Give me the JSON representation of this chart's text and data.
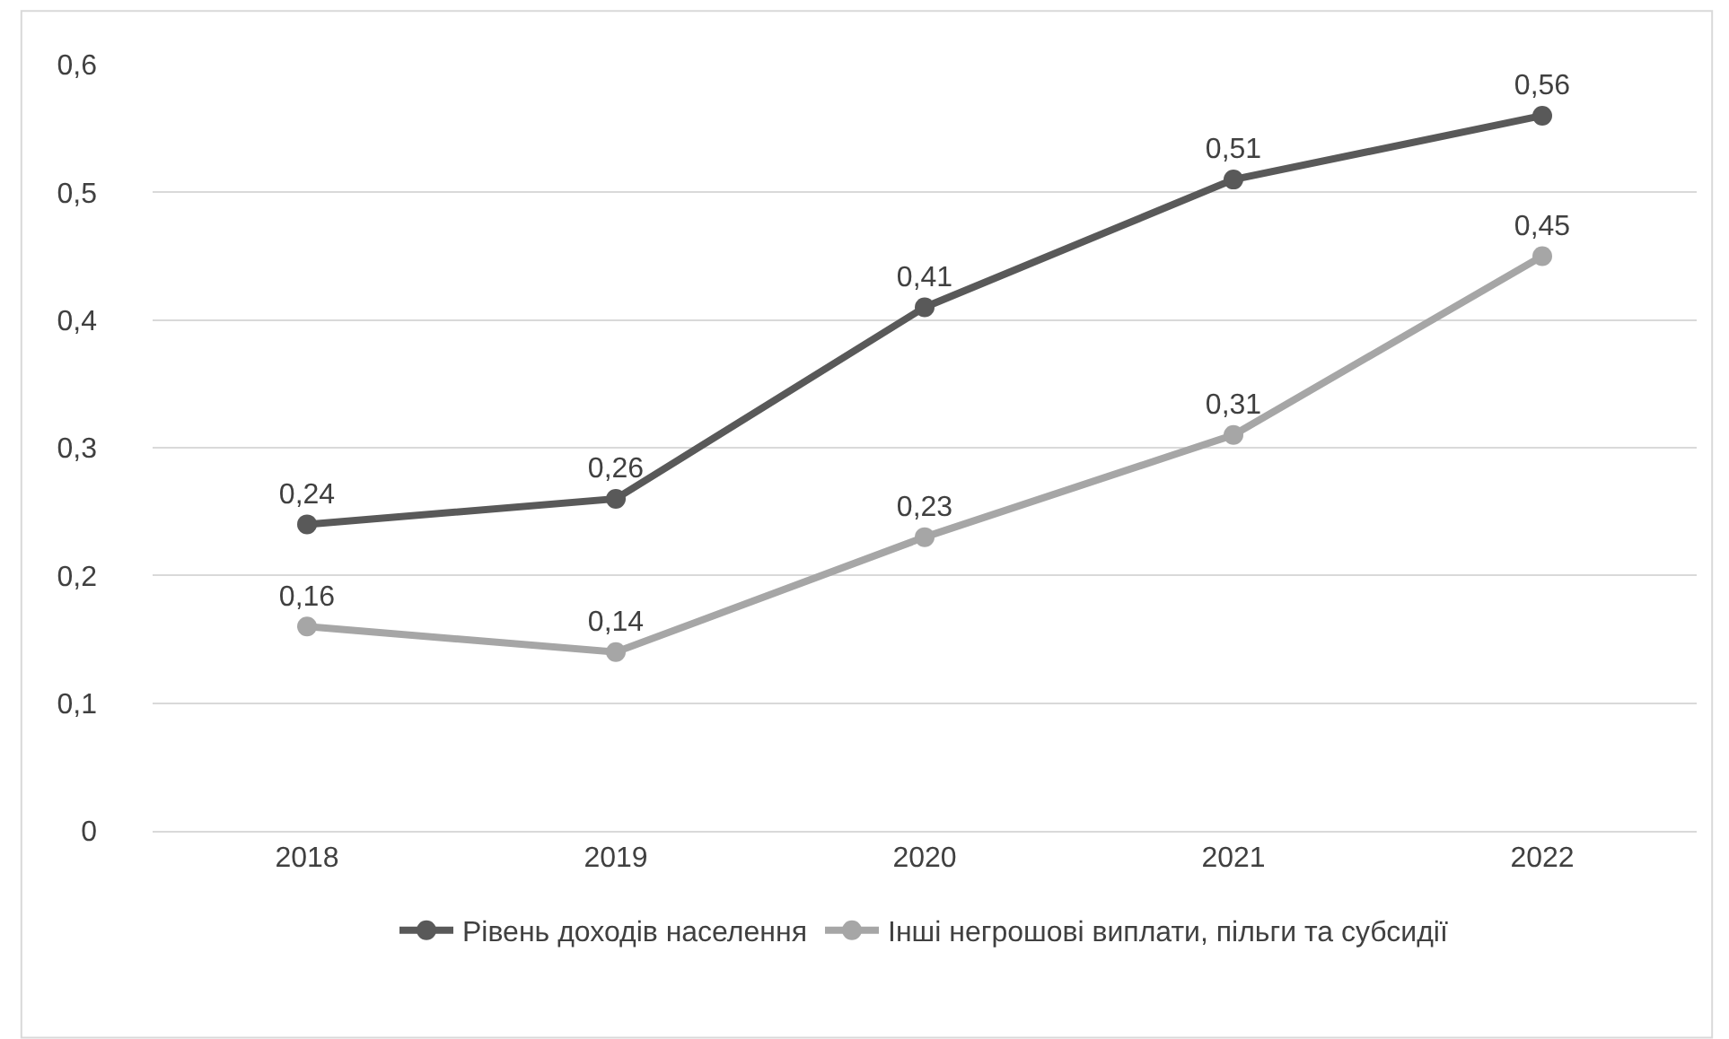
{
  "chart_data": {
    "type": "line",
    "categories": [
      "2018",
      "2019",
      "2020",
      "2021",
      "2022"
    ],
    "series": [
      {
        "name": "Рівень доходів населення",
        "color": "#595959",
        "values": [
          0.24,
          0.26,
          0.41,
          0.51,
          0.56
        ],
        "value_labels": [
          "0,24",
          "0,26",
          "0,41",
          "0,51",
          "0,56"
        ]
      },
      {
        "name": "Інші негрошові виплати, пільги та субсидії",
        "color": "#a6a6a6",
        "values": [
          0.16,
          0.14,
          0.23,
          0.31,
          0.45
        ],
        "value_labels": [
          "0,16",
          "0,14",
          "0,23",
          "0,31",
          "0,45"
        ]
      }
    ],
    "ylim": [
      0,
      0.6
    ],
    "yticks": [
      {
        "value": 0,
        "label": "0"
      },
      {
        "value": 0.1,
        "label": "0,1"
      },
      {
        "value": 0.2,
        "label": "0,2"
      },
      {
        "value": 0.3,
        "label": "0,3"
      },
      {
        "value": 0.4,
        "label": "0,4"
      },
      {
        "value": 0.5,
        "label": "0,5"
      },
      {
        "value": 0.6,
        "label": "0,6"
      }
    ],
    "grid": "y",
    "legend": "bottom",
    "marker": "circle",
    "line_style": "solid"
  }
}
